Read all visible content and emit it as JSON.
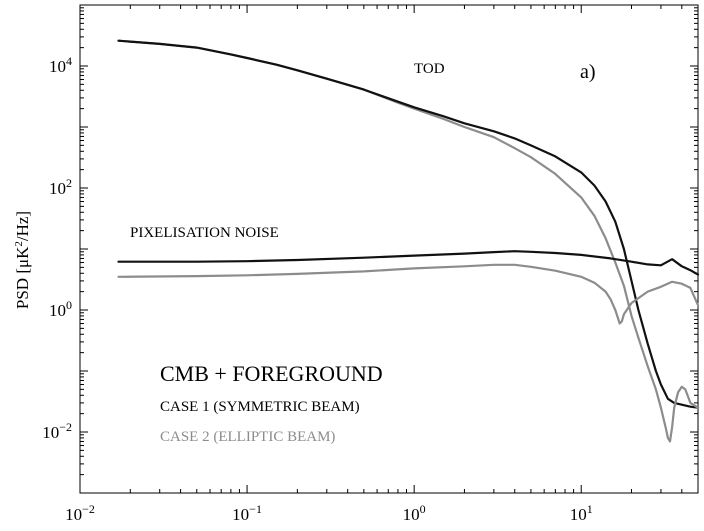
{
  "chart_data": {
    "type": "line",
    "x_scale": "log",
    "y_scale": "log",
    "xlim": [
      0.01,
      50
    ],
    "ylim": [
      0.001,
      100000
    ],
    "ylabel": "PSD [μK²/Hz]",
    "xlabel": "",
    "panel_label": "a)",
    "x_ticks": [
      {
        "value": 0.01,
        "base": "10",
        "exp": "−2"
      },
      {
        "value": 0.1,
        "base": "10",
        "exp": "−1"
      },
      {
        "value": 1,
        "base": "10",
        "exp": "0"
      },
      {
        "value": 10,
        "base": "10",
        "exp": "1"
      }
    ],
    "y_ticks": [
      {
        "value": 0.01,
        "base": "10",
        "exp": "−2"
      },
      {
        "value": 1,
        "base": "10",
        "exp": "0"
      },
      {
        "value": 100,
        "base": "10",
        "exp": "2"
      },
      {
        "value": 10000,
        "base": "10",
        "exp": "4"
      }
    ],
    "annotations": {
      "tod": "TOD",
      "pixelisation": "PIXELISATION NOISE",
      "legend_title": "CMB + FOREGROUND",
      "case1": "CASE 1 (SYMMETRIC BEAM)",
      "case2": "CASE 2 (ELLIPTIC BEAM)"
    },
    "colors": {
      "case1": "#111111",
      "case2": "#8c8c8c"
    },
    "series": [
      {
        "group": "TOD",
        "case": 2,
        "color": "#8c8c8c",
        "x": [
          0.017,
          0.03,
          0.05,
          0.08,
          0.1,
          0.15,
          0.2,
          0.3,
          0.5,
          0.8,
          1.0,
          1.5,
          2,
          3,
          4,
          5,
          7,
          10,
          12,
          14,
          16,
          18,
          20,
          22
        ],
        "y": [
          26000,
          23000,
          20000,
          15500,
          13500,
          10500,
          8500,
          6200,
          4100,
          2500,
          2000,
          1350,
          1000,
          680,
          450,
          320,
          170,
          70,
          35,
          15,
          6,
          2.5,
          0.8,
          0.35
        ]
      },
      {
        "group": "TOD",
        "case": 1,
        "color": "#111111",
        "x": [
          0.017,
          0.03,
          0.05,
          0.08,
          0.1,
          0.15,
          0.2,
          0.3,
          0.5,
          0.8,
          1.0,
          1.5,
          2,
          3,
          4,
          5,
          7,
          10,
          12,
          14,
          16,
          18,
          20,
          22,
          25,
          28,
          30,
          33,
          36,
          40,
          45,
          50
        ],
        "y": [
          26000,
          23000,
          20000,
          15500,
          13500,
          10500,
          8500,
          6200,
          4100,
          2600,
          2100,
          1500,
          1150,
          850,
          650,
          500,
          330,
          180,
          110,
          60,
          28,
          10,
          3,
          1.0,
          0.28,
          0.1,
          0.06,
          0.035,
          0.03,
          0.028,
          0.026,
          0.025
        ]
      },
      {
        "group": "PIXELISATION NOISE",
        "case": 2,
        "color": "#8c8c8c",
        "x": [
          0.017,
          0.05,
          0.1,
          0.2,
          0.5,
          1,
          2,
          3,
          4,
          5,
          7,
          10,
          12,
          14,
          15,
          16,
          17,
          17.5,
          18,
          20,
          25,
          30,
          35,
          40,
          45,
          50
        ],
        "y": [
          3.5,
          3.6,
          3.7,
          3.9,
          4.3,
          4.8,
          5.2,
          5.5,
          5.5,
          5.1,
          4.4,
          3.5,
          2.8,
          2.0,
          1.5,
          1.0,
          0.6,
          0.65,
          0.85,
          1.3,
          2.0,
          2.4,
          2.9,
          2.7,
          2.3,
          1.2
        ]
      },
      {
        "group": "PIXELISATION NOISE",
        "case": 1,
        "color": "#111111",
        "x": [
          0.017,
          0.05,
          0.1,
          0.2,
          0.5,
          1,
          2,
          3,
          4,
          5,
          7,
          10,
          15,
          20,
          25,
          30,
          35,
          40,
          45,
          50
        ],
        "y": [
          6.2,
          6.2,
          6.3,
          6.6,
          7.2,
          7.8,
          8.4,
          8.9,
          9.2,
          9.0,
          8.6,
          8.0,
          7.0,
          6.2,
          5.6,
          5.4,
          6.8,
          5.2,
          4.5,
          3.8
        ]
      },
      {
        "group": "PIXELISATION NOISE (tail)",
        "case": 2,
        "color": "#8c8c8c",
        "x": [
          22,
          25,
          28,
          30,
          32,
          33,
          34,
          35,
          36,
          38,
          40,
          42,
          45,
          50
        ],
        "y": [
          0.35,
          0.12,
          0.05,
          0.025,
          0.012,
          0.008,
          0.007,
          0.012,
          0.025,
          0.045,
          0.055,
          0.05,
          0.03,
          0.025
        ]
      }
    ]
  }
}
